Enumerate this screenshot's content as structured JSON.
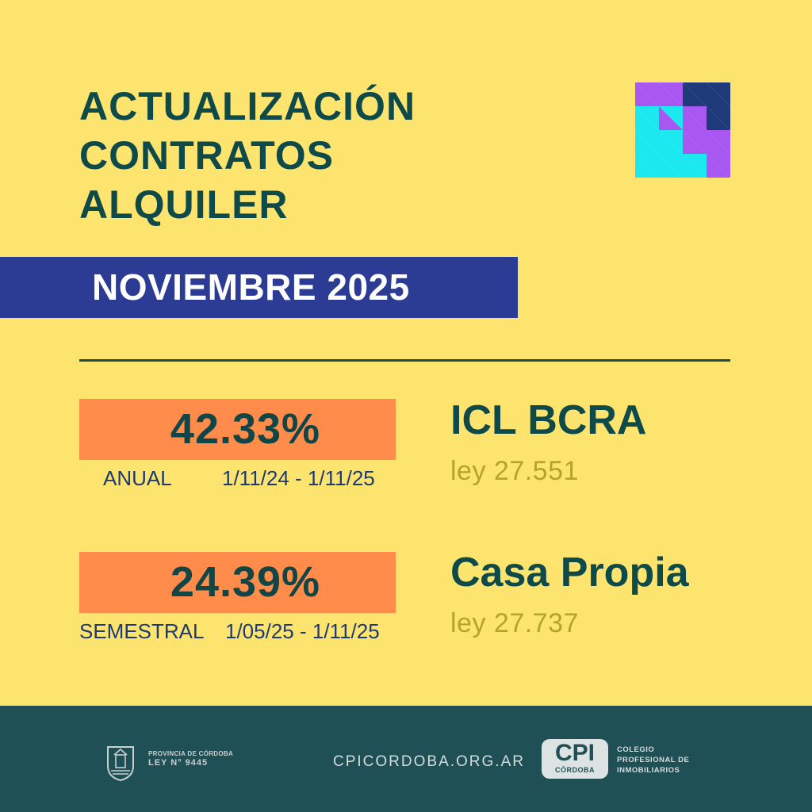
{
  "title": {
    "line1": "ACTUALIZACIÓN",
    "line2": "CONTRATOS",
    "line3": "ALQUILER"
  },
  "month": "NOVIEMBRE 2025",
  "indices": [
    {
      "rate": "42.33%",
      "period_label": "ANUAL",
      "period_range": "1/11/24 - 1/11/25",
      "name": "ICL  BCRA",
      "law": "ley 27.551"
    },
    {
      "rate": "24.39%",
      "period_label": "SEMESTRAL",
      "period_range": "1/05/25 - 1/11/25",
      "name": "Casa Propia",
      "law": "ley 27.737"
    }
  ],
  "footer": {
    "province_line1": "PROVINCIA DE CÓRDOBA",
    "province_line2": "LEY N° 9445",
    "website": "CPICORDOBA.ORG.AR",
    "logo_main": "CPI",
    "logo_sub": "CÓRDOBA",
    "org_line1": "COLEGIO",
    "org_line2": "PROFESIONAL DE",
    "org_line3": "INMOBILIARIOS"
  },
  "colors": {
    "background": "#FDE46E",
    "title": "#0F4A4A",
    "month_bar": "#2C3C94",
    "rate_box": "#FF8C4A",
    "law_text": "#B5A42A",
    "footer": "#1F5055",
    "pattern_purple": "#A857F0",
    "pattern_cyan": "#1CE8F0",
    "pattern_navy": "#1E3A78"
  },
  "icons": {
    "pattern": "triangle-pattern-icon",
    "crest": "cordoba-crest-icon"
  }
}
